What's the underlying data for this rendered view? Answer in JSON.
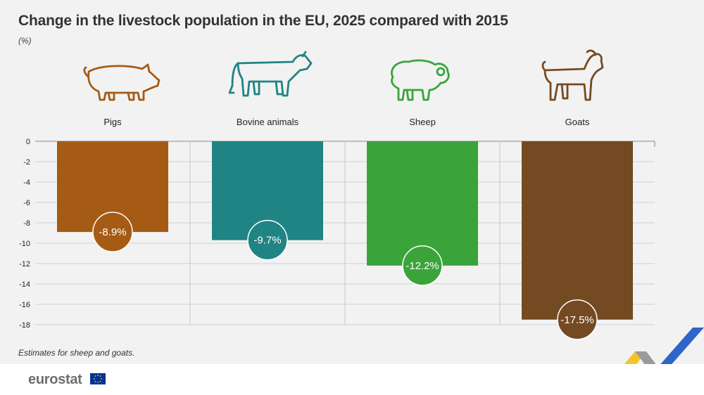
{
  "chart_data": {
    "type": "bar",
    "title": "Change in the livestock population in the EU, 2025 compared with 2015",
    "unit": "(%)",
    "categories": [
      "Pigs",
      "Bovine animals",
      "Sheep",
      "Goats"
    ],
    "values": [
      -8.9,
      -9.7,
      -12.2,
      -17.5
    ],
    "value_labels": [
      "-8.9%",
      "-9.7%",
      "-12.2%",
      "-17.5%"
    ],
    "colors": [
      "#a55b14",
      "#208484",
      "#3aa43a",
      "#744a22"
    ],
    "icon_names": [
      "pig-icon",
      "cow-icon",
      "sheep-icon",
      "goat-icon"
    ],
    "yticks": [
      "0",
      "-2",
      "-4",
      "-6",
      "-8",
      "-10",
      "-12",
      "-14",
      "-16",
      "-18"
    ],
    "ylim": [
      -18,
      0
    ],
    "grid": true,
    "note": "Estimates for sheep and goats."
  },
  "footer": {
    "brand": "eurostat"
  }
}
